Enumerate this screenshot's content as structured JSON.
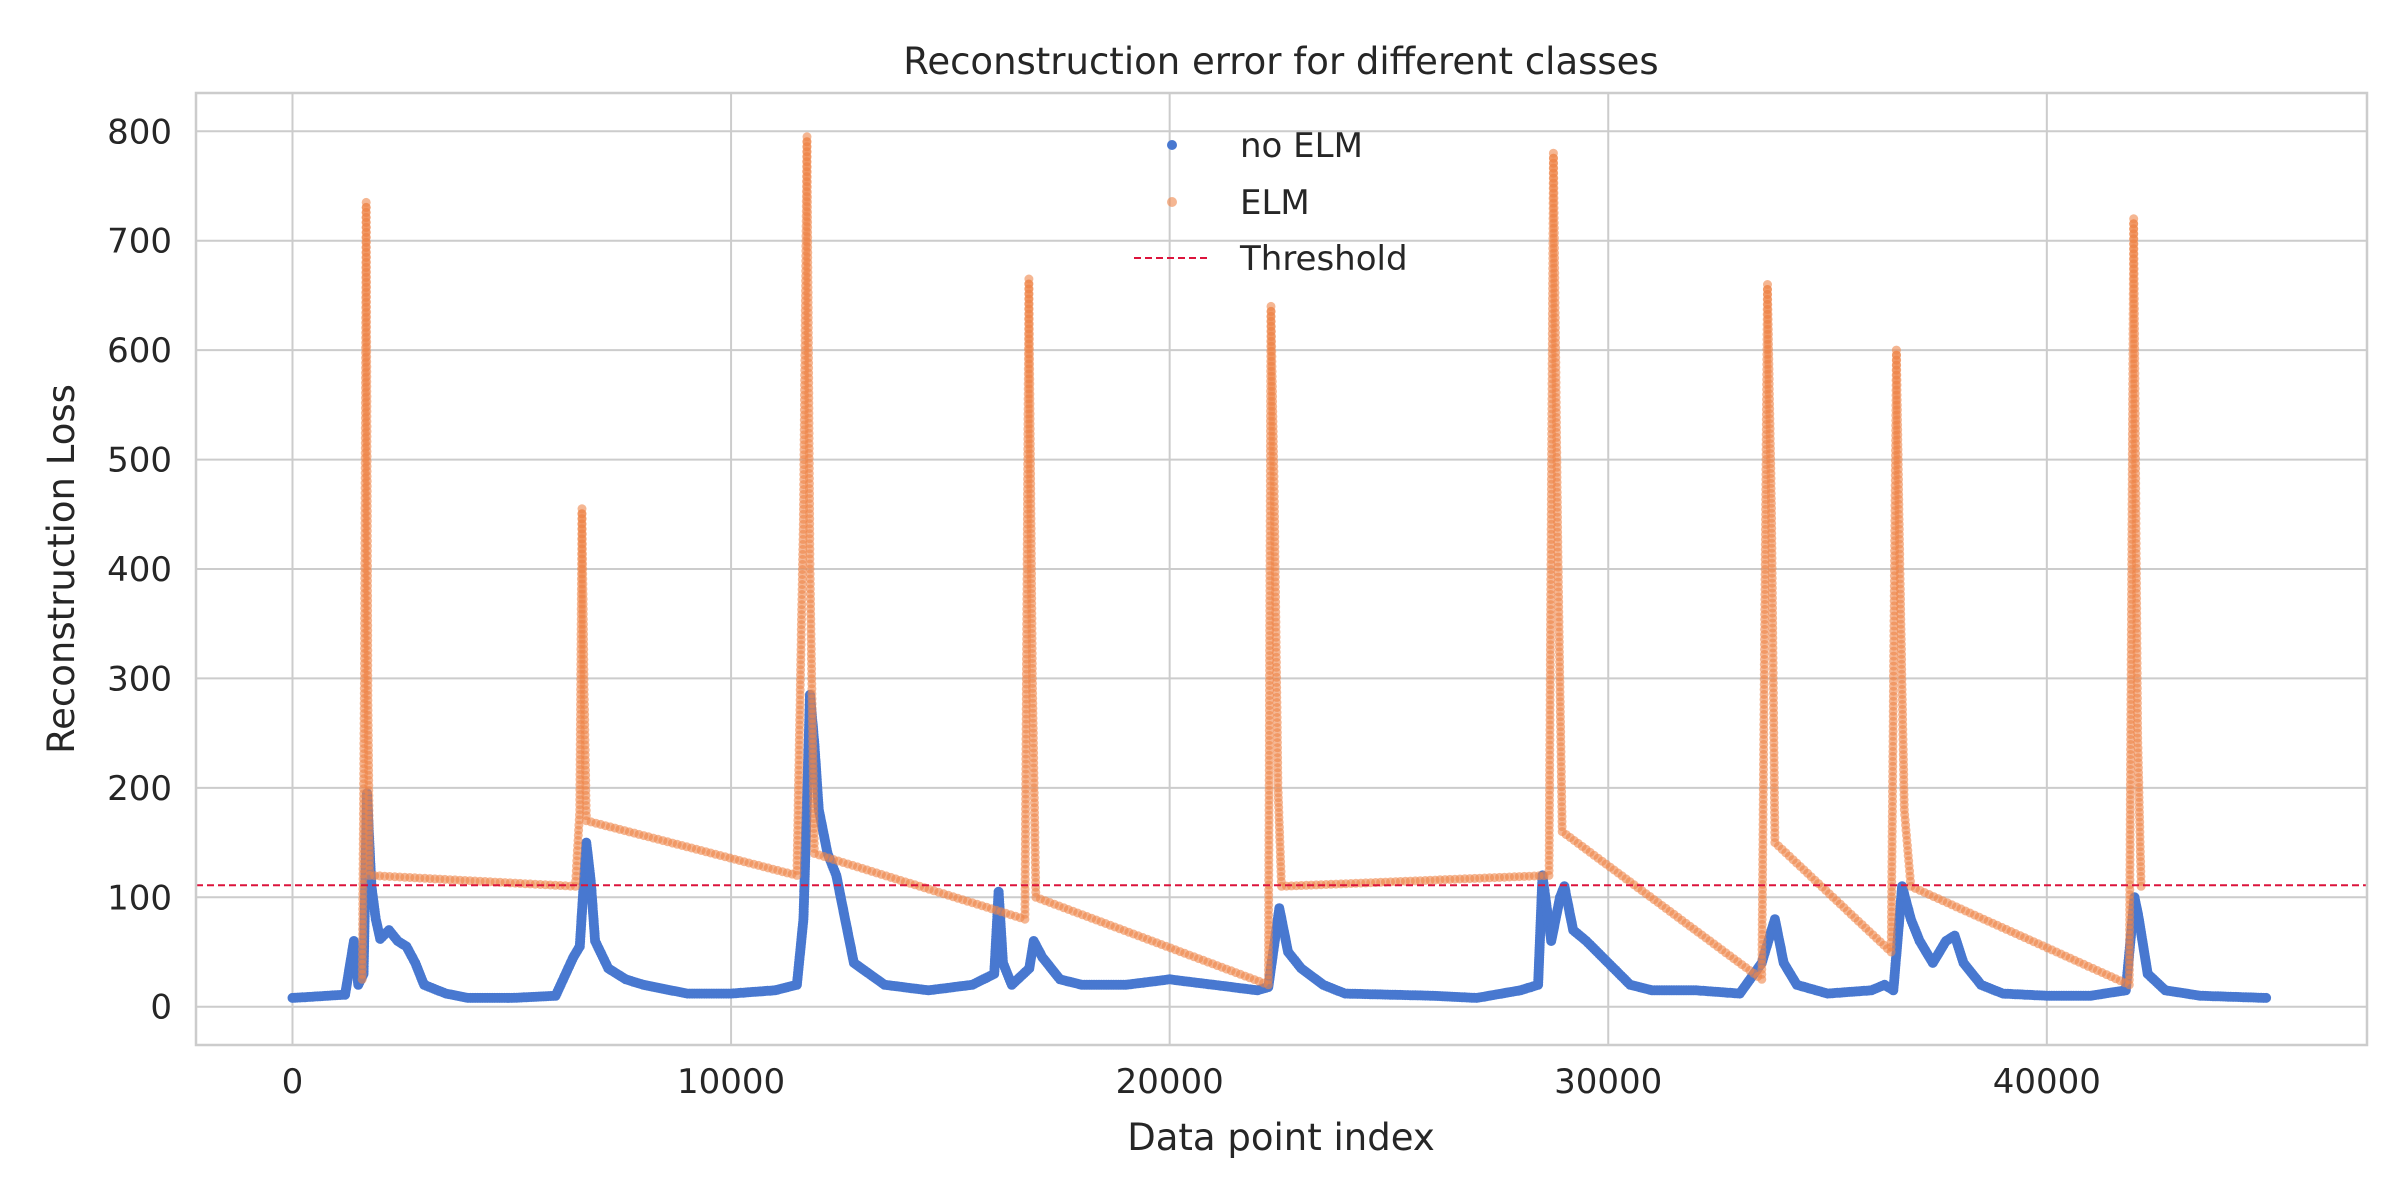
{
  "chart_data": {
    "type": "scatter",
    "title": "Reconstruction error for different classes",
    "xlabel": "Data point index",
    "ylabel": "Reconstruction Loss",
    "xlim": [
      -2200,
      47300
    ],
    "ylim": [
      -35,
      835
    ],
    "xticks": [
      0,
      10000,
      20000,
      30000,
      40000
    ],
    "yticks": [
      0,
      100,
      200,
      300,
      400,
      500,
      600,
      700,
      800
    ],
    "grid": true,
    "legend_position": "top-center",
    "threshold": {
      "name": "Threshold",
      "value": 111,
      "color": "#dc143c"
    },
    "series": [
      {
        "name": "no ELM",
        "color": "#4878d0",
        "points": [
          [
            0,
            8
          ],
          [
            400,
            9
          ],
          [
            800,
            10
          ],
          [
            1200,
            11
          ],
          [
            1400,
            60
          ],
          [
            1500,
            20
          ],
          [
            1620,
            30
          ],
          [
            1700,
            195
          ],
          [
            1800,
            110
          ],
          [
            1900,
            80
          ],
          [
            2000,
            62
          ],
          [
            2200,
            70
          ],
          [
            2400,
            60
          ],
          [
            2600,
            55
          ],
          [
            2800,
            40
          ],
          [
            3000,
            20
          ],
          [
            3500,
            12
          ],
          [
            4000,
            8
          ],
          [
            5000,
            8
          ],
          [
            6000,
            10
          ],
          [
            6400,
            45
          ],
          [
            6550,
            55
          ],
          [
            6700,
            150
          ],
          [
            6800,
            115
          ],
          [
            6900,
            60
          ],
          [
            7200,
            35
          ],
          [
            7600,
            25
          ],
          [
            8000,
            20
          ],
          [
            9000,
            12
          ],
          [
            10000,
            12
          ],
          [
            11000,
            15
          ],
          [
            11500,
            20
          ],
          [
            11650,
            80
          ],
          [
            11800,
            285
          ],
          [
            11900,
            240
          ],
          [
            12000,
            180
          ],
          [
            12200,
            140
          ],
          [
            12400,
            120
          ],
          [
            12600,
            80
          ],
          [
            12800,
            40
          ],
          [
            13500,
            20
          ],
          [
            14500,
            15
          ],
          [
            15500,
            20
          ],
          [
            16000,
            30
          ],
          [
            16100,
            105
          ],
          [
            16200,
            40
          ],
          [
            16400,
            20
          ],
          [
            16800,
            35
          ],
          [
            16900,
            60
          ],
          [
            17100,
            45
          ],
          [
            17500,
            25
          ],
          [
            18000,
            20
          ],
          [
            19000,
            20
          ],
          [
            20000,
            25
          ],
          [
            21000,
            20
          ],
          [
            22000,
            15
          ],
          [
            22250,
            18
          ],
          [
            22500,
            90
          ],
          [
            22700,
            50
          ],
          [
            23000,
            35
          ],
          [
            23500,
            20
          ],
          [
            24000,
            12
          ],
          [
            26000,
            10
          ],
          [
            27000,
            8
          ],
          [
            28000,
            15
          ],
          [
            28400,
            20
          ],
          [
            28500,
            120
          ],
          [
            28700,
            60
          ],
          [
            28900,
            100
          ],
          [
            29000,
            110
          ],
          [
            29200,
            70
          ],
          [
            29500,
            60
          ],
          [
            30000,
            40
          ],
          [
            30500,
            20
          ],
          [
            31000,
            15
          ],
          [
            32000,
            15
          ],
          [
            33000,
            12
          ],
          [
            33500,
            40
          ],
          [
            33800,
            80
          ],
          [
            34000,
            40
          ],
          [
            34300,
            20
          ],
          [
            35000,
            12
          ],
          [
            36000,
            15
          ],
          [
            36300,
            20
          ],
          [
            36500,
            15
          ],
          [
            36700,
            110
          ],
          [
            36900,
            80
          ],
          [
            37100,
            60
          ],
          [
            37400,
            40
          ],
          [
            37700,
            60
          ],
          [
            37900,
            65
          ],
          [
            38100,
            40
          ],
          [
            38500,
            20
          ],
          [
            39000,
            12
          ],
          [
            40000,
            10
          ],
          [
            41000,
            10
          ],
          [
            41800,
            15
          ],
          [
            42000,
            100
          ],
          [
            42100,
            80
          ],
          [
            42300,
            30
          ],
          [
            42700,
            15
          ],
          [
            43500,
            10
          ],
          [
            45000,
            8
          ]
        ]
      },
      {
        "name": "ELM",
        "color": "#ee854a",
        "points": [
          [
            1590,
            25
          ],
          [
            1640,
            300
          ],
          [
            1680,
            735
          ],
          [
            1720,
            280
          ],
          [
            1760,
            120
          ],
          [
            6450,
            110
          ],
          [
            6550,
            180
          ],
          [
            6600,
            455
          ],
          [
            6650,
            290
          ],
          [
            6700,
            170
          ],
          [
            11500,
            120
          ],
          [
            11650,
            450
          ],
          [
            11730,
            795
          ],
          [
            11800,
            400
          ],
          [
            11900,
            140
          ],
          [
            16700,
            80
          ],
          [
            16790,
            665
          ],
          [
            16870,
            300
          ],
          [
            16950,
            100
          ],
          [
            22250,
            20
          ],
          [
            22310,
            640
          ],
          [
            22380,
            480
          ],
          [
            22470,
            200
          ],
          [
            22550,
            110
          ],
          [
            28650,
            120
          ],
          [
            28750,
            780
          ],
          [
            28850,
            420
          ],
          [
            28950,
            160
          ],
          [
            33500,
            25
          ],
          [
            33630,
            660
          ],
          [
            33720,
            460
          ],
          [
            33800,
            150
          ],
          [
            36450,
            50
          ],
          [
            36570,
            600
          ],
          [
            36650,
            400
          ],
          [
            36750,
            180
          ],
          [
            36900,
            110
          ],
          [
            41880,
            20
          ],
          [
            41980,
            720
          ],
          [
            42070,
            250
          ],
          [
            42150,
            110
          ]
        ]
      }
    ]
  }
}
